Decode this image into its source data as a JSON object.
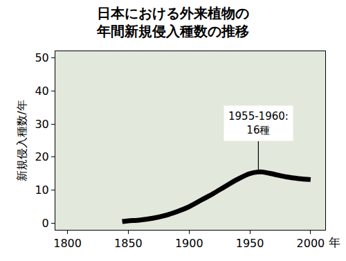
{
  "chart_data": {
    "type": "line",
    "title": "日本における外来植物の\n年間新規侵入種数の推移",
    "y_label": "新規侵入種数/年",
    "x_label": "年",
    "x": [
      1845,
      1850,
      1860,
      1870,
      1880,
      1890,
      1900,
      1910,
      1920,
      1930,
      1940,
      1950,
      1957,
      1960,
      1970,
      1980,
      1990,
      2000
    ],
    "values": [
      0.5,
      0.7,
      1.0,
      1.5,
      2.3,
      3.5,
      5.0,
      7.0,
      9.0,
      11.2,
      13.3,
      15.0,
      15.5,
      15.5,
      14.8,
      14.0,
      13.5,
      13.2
    ],
    "color": "#000000",
    "xlim": [
      1790,
      2012
    ],
    "xticks": [
      1800,
      1850,
      1900,
      1950,
      2000
    ],
    "ylim": [
      -2,
      52
    ],
    "yticks": [
      0,
      10,
      20,
      30,
      40,
      50
    ],
    "grid": false,
    "annotation": {
      "text": "1955-1960:\n16種",
      "x": 1957,
      "y": 15.5
    }
  }
}
